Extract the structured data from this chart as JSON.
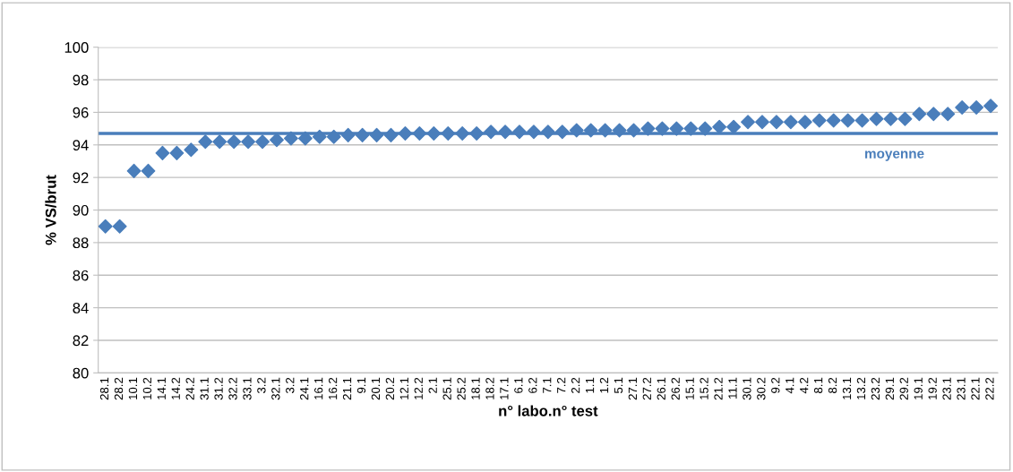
{
  "chart_data": {
    "type": "scatter",
    "xlabel": "n° labo.n° test",
    "ylabel": "% VS/brut",
    "categories": [
      "28.1",
      "28.2",
      "10.1",
      "10.2",
      "14.1",
      "14.2",
      "24.2",
      "31.1",
      "31.2",
      "32.2",
      "33.1",
      "3.2",
      "32.1",
      "3.2",
      "24.1",
      "16.1",
      "16.2",
      "21.1",
      "9.1",
      "20.1",
      "20.2",
      "12.1",
      "12.2",
      "2.1",
      "25.1",
      "25.2",
      "18.1",
      "18.2",
      "17.1",
      "6.1",
      "6.2",
      "7.1",
      "7.2",
      "2.2",
      "1.1",
      "1.2",
      "5.1",
      "27.1",
      "27.2",
      "26.1",
      "26.2",
      "15.1",
      "15.2",
      "21.2",
      "11.1",
      "30.1",
      "30.2",
      "9.2",
      "4.1",
      "4.2",
      "8.1",
      "8.2",
      "13.1",
      "13.2",
      "23.2",
      "29.1",
      "29.2",
      "19.1",
      "19.2",
      "23.1",
      "23.1",
      "22.1",
      "22.2"
    ],
    "series": [
      {
        "color": "#4a7ebb",
        "values": [
          89.0,
          89.0,
          92.4,
          92.4,
          93.5,
          93.5,
          93.7,
          94.2,
          94.2,
          94.2,
          94.2,
          94.2,
          94.3,
          94.4,
          94.4,
          94.5,
          94.5,
          94.6,
          94.6,
          94.6,
          94.6,
          94.7,
          94.7,
          94.7,
          94.7,
          94.7,
          94.7,
          94.8,
          94.8,
          94.8,
          94.8,
          94.8,
          94.8,
          94.9,
          94.9,
          94.9,
          94.9,
          94.9,
          95.0,
          95.0,
          95.0,
          95.0,
          95.0,
          95.1,
          95.1,
          95.4,
          95.4,
          95.4,
          95.4,
          95.4,
          95.5,
          95.5,
          95.5,
          95.5,
          95.6,
          95.6,
          95.6,
          95.9,
          95.9,
          95.9,
          96.3,
          96.3,
          96.4
        ]
      }
    ],
    "marker": "diamond",
    "ylim": [
      80,
      100
    ],
    "yticks": [
      80,
      82,
      84,
      86,
      88,
      90,
      92,
      94,
      96,
      98,
      100
    ],
    "grid": "y",
    "ref_lines": [
      {
        "axis": "y",
        "value": 94.7,
        "label": "moyenne",
        "color": "#4a7ebb",
        "line_style": "solid"
      }
    ]
  }
}
